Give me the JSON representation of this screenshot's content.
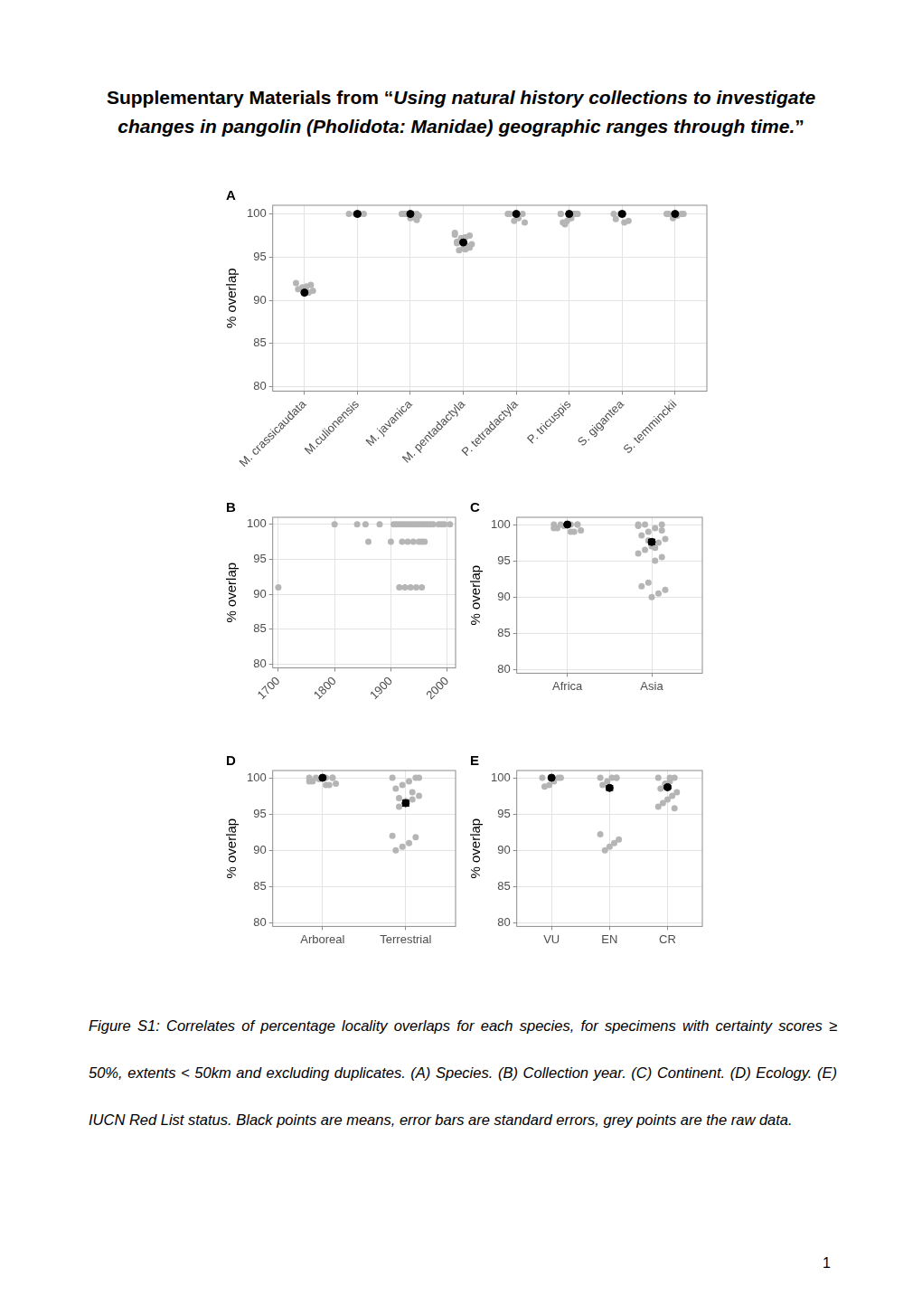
{
  "title": {
    "lead": "Supplementary Materials from “",
    "italic": "Using natural history collections to investigate changes in pangolin (Pholidota: Manidae) geographic ranges through time.",
    "end": "”"
  },
  "chart_data": [
    {
      "label": "A",
      "type": "scatter",
      "y_label": "% overlap",
      "color": "#b5b5b5",
      "grid": true,
      "categories": [
        "M. crassicaudata",
        "M.culionensis",
        "M. javanica",
        "M. pentadactyla",
        "P. tetradactyla",
        "P. tricuspis",
        "S. gigantea",
        "S. temminckii"
      ],
      "raw": [
        [
          92.0,
          91.8,
          91.6,
          91.5,
          91.3,
          91.1,
          90.9,
          90.8
        ],
        [
          100,
          100,
          100,
          100
        ],
        [
          100,
          100,
          100,
          100,
          100,
          99.8,
          99.6,
          99.5,
          100,
          100,
          99.3,
          100
        ],
        [
          97.8,
          97.5,
          97.3,
          97.0,
          96.8,
          96.5,
          96.3,
          96.0,
          95.8,
          97.6,
          96.1,
          95.9,
          97.2,
          96.6
        ],
        [
          100,
          100,
          99.5,
          99.2,
          100,
          99.0
        ],
        [
          100,
          100,
          99.5,
          99.2,
          99.0,
          100,
          100,
          99.8,
          98.8,
          100
        ],
        [
          100,
          99.2,
          99.0,
          100,
          99.4
        ],
        [
          100,
          100,
          99.8,
          99.5,
          100,
          100
        ]
      ],
      "means": [
        90.9,
        100,
        100,
        96.7,
        100,
        100,
        100,
        100
      ],
      "se": [
        0.1,
        0,
        0.05,
        0.1,
        0.05,
        0.05,
        0.1,
        0.05
      ],
      "ylim": [
        79.5,
        101
      ],
      "yticks": [
        80,
        85,
        90,
        95,
        100
      ]
    },
    {
      "label": "B",
      "type": "scatter",
      "y_label": "% overlap",
      "color": "#b5b5b5",
      "grid": true,
      "x": [
        1700,
        1800,
        1840,
        1855,
        1860,
        1880,
        1900,
        1905,
        1910,
        1915,
        1915,
        1920,
        1920,
        1925,
        1925,
        1930,
        1930,
        1935,
        1935,
        1940,
        1940,
        1945,
        1945,
        1950,
        1950,
        1955,
        1955,
        1955,
        1960,
        1960,
        1965,
        1970,
        1975,
        1985,
        1990,
        1995,
        2005
      ],
      "y": [
        91,
        100,
        100,
        100,
        97.5,
        100,
        97.5,
        100,
        100,
        91,
        100,
        97.5,
        100,
        91,
        100,
        97.5,
        100,
        91,
        100,
        97.5,
        100,
        91,
        100,
        97.5,
        100,
        91,
        97.5,
        100,
        97.5,
        100,
        100,
        100,
        100,
        100,
        100,
        100,
        100
      ],
      "xlim": [
        1690,
        2015
      ],
      "xticks": [
        1700,
        1800,
        1900,
        2000
      ],
      "ylim": [
        79.5,
        101
      ],
      "yticks": [
        80,
        85,
        90,
        95,
        100
      ]
    },
    {
      "label": "C",
      "type": "scatter",
      "y_label": "% overlap",
      "color": "#b5b5b5",
      "grid": true,
      "categories": [
        "Africa",
        "Asia"
      ],
      "raw": [
        [
          100,
          100,
          100,
          99.8,
          99.5,
          99.2,
          99.0,
          100,
          100,
          99.5,
          100,
          99.0
        ],
        [
          100,
          100,
          99.5,
          99.0,
          98.5,
          98.0,
          97.5,
          97.0,
          96.5,
          96.0,
          95.5,
          95.0,
          92.0,
          91.5,
          91.0,
          90.5,
          90.0,
          100,
          99.8,
          99.2,
          96.8,
          97.8
        ]
      ],
      "means": [
        100,
        97.6
      ],
      "se": [
        0.1,
        0.35
      ],
      "ylim": [
        79.5,
        101
      ],
      "yticks": [
        80,
        85,
        90,
        95,
        100
      ]
    },
    {
      "label": "D",
      "type": "scatter",
      "y_label": "% overlap",
      "color": "#b5b5b5",
      "grid": true,
      "categories": [
        "Arboreal",
        "Terrestrial"
      ],
      "raw": [
        [
          100,
          100,
          100,
          99.8,
          99.5,
          99.2,
          99.0,
          100,
          100,
          99.5,
          100,
          99.0
        ],
        [
          100,
          100,
          99.5,
          99,
          98.5,
          97.5,
          97,
          96.5,
          96,
          92,
          91.8,
          91,
          90.5,
          90,
          100,
          98,
          96.8,
          97.2
        ]
      ],
      "means": [
        100,
        96.5
      ],
      "se": [
        0.1,
        0.4
      ],
      "ylim": [
        79.5,
        101
      ],
      "yticks": [
        80,
        85,
        90,
        95,
        100
      ]
    },
    {
      "label": "E",
      "type": "scatter",
      "y_label": "% overlap",
      "color": "#b5b5b5",
      "grid": true,
      "categories": [
        "VU",
        "EN",
        "CR"
      ],
      "raw": [
        [
          100,
          100,
          99.5,
          99,
          98.8,
          100
        ],
        [
          100,
          100,
          100,
          99.5,
          99,
          91.5,
          91,
          90.5,
          90,
          92.2,
          100
        ],
        [
          100,
          100,
          99.5,
          99,
          98.5,
          98,
          97.5,
          97,
          96.5,
          96,
          95.8,
          100,
          99.2
        ]
      ],
      "means": [
        100,
        98.6,
        98.7
      ],
      "se": [
        0.1,
        0.3,
        0.2
      ],
      "ylim": [
        79.5,
        101
      ],
      "yticks": [
        80,
        85,
        90,
        95,
        100
      ]
    }
  ],
  "caption": "Figure S1: Correlates of percentage locality overlaps for each species, for specimens with certainty scores ≥ 50%, extents < 50km and excluding duplicates. (A) Species. (B) Collection year. (C) Continent. (D) Ecology. (E) IUCN Red List status. Black points are means, error bars are standard errors, grey points are the raw data.",
  "page_number": "1"
}
